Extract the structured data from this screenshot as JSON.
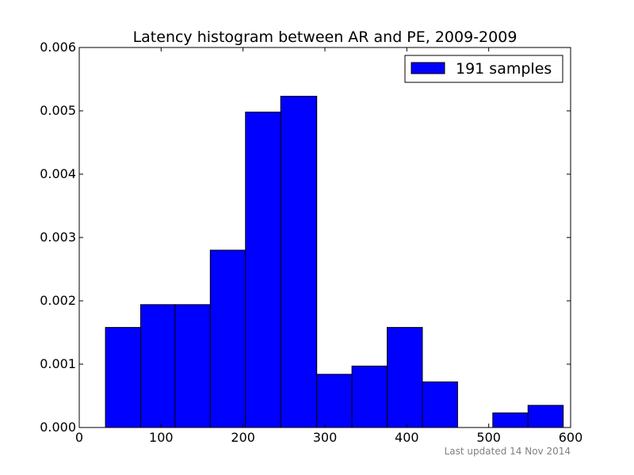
{
  "chart_data": {
    "type": "bar",
    "title": "Latency histogram between AR and PE, 2009-2009",
    "xlabel": "",
    "ylabel": "",
    "xlim": [
      0,
      600
    ],
    "ylim": [
      0,
      0.006
    ],
    "xticks": [
      0,
      100,
      200,
      300,
      400,
      500,
      600
    ],
    "xtick_labels": [
      "0",
      "100",
      "200",
      "300",
      "400",
      "500",
      "600"
    ],
    "yticks": [
      0,
      0.001,
      0.002,
      0.003,
      0.004,
      0.005,
      0.006
    ],
    "ytick_labels": [
      "0.000",
      "0.001",
      "0.002",
      "0.003",
      "0.004",
      "0.005",
      "0.006"
    ],
    "grid": false,
    "legend_position": "top-right",
    "series": [
      {
        "name": "191 samples",
        "color": "#0000ff",
        "bins": [
          {
            "x0": 32,
            "x1": 75,
            "value": 0.00158
          },
          {
            "x0": 75,
            "x1": 117,
            "value": 0.00194
          },
          {
            "x0": 117,
            "x1": 160,
            "value": 0.00194
          },
          {
            "x0": 160,
            "x1": 203,
            "value": 0.0028
          },
          {
            "x0": 203,
            "x1": 246,
            "value": 0.00498
          },
          {
            "x0": 246,
            "x1": 290,
            "value": 0.00523
          },
          {
            "x0": 290,
            "x1": 333,
            "value": 0.00084
          },
          {
            "x0": 333,
            "x1": 376,
            "value": 0.00097
          },
          {
            "x0": 376,
            "x1": 419,
            "value": 0.00158
          },
          {
            "x0": 419,
            "x1": 462,
            "value": 0.00072
          },
          {
            "x0": 462,
            "x1": 505,
            "value": 0
          },
          {
            "x0": 505,
            "x1": 548,
            "value": 0.00023
          },
          {
            "x0": 548,
            "x1": 591,
            "value": 0.00035
          }
        ]
      }
    ]
  },
  "footer": {
    "updated_text": "Last updated 14 Nov 2014"
  }
}
